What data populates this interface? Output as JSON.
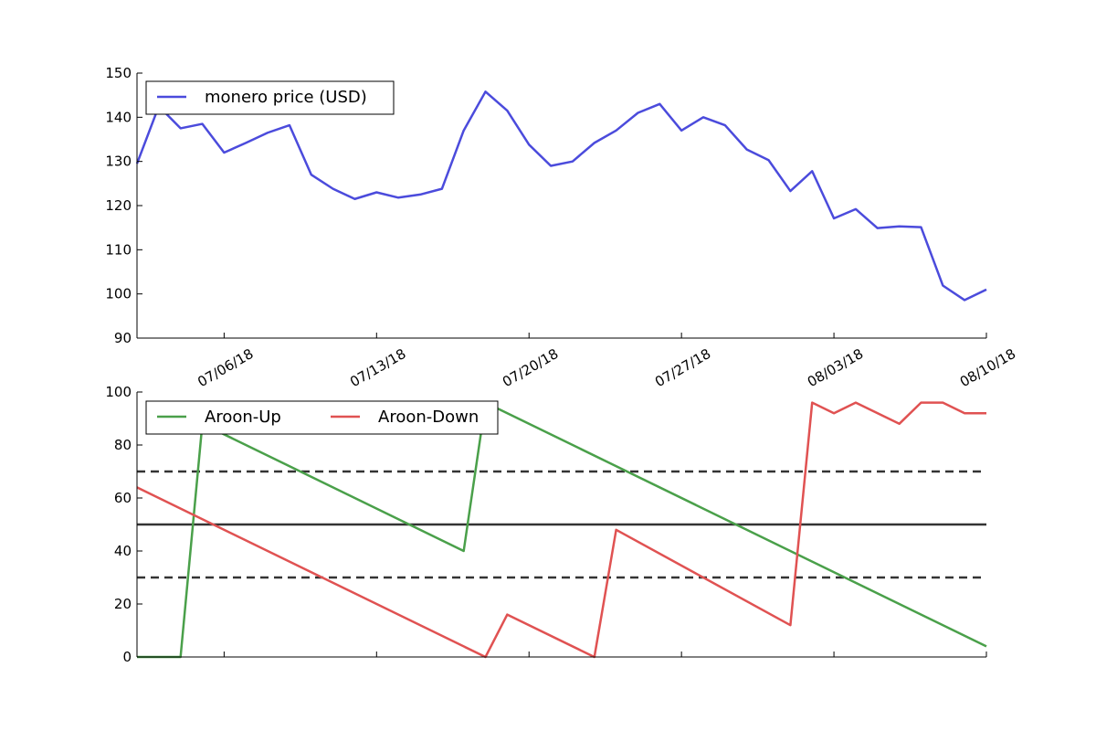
{
  "chart_data": [
    {
      "type": "line",
      "title": "",
      "xlabel": "",
      "ylabel": "",
      "ylim": [
        90,
        150
      ],
      "yticks": [
        90,
        100,
        110,
        120,
        130,
        140,
        150
      ],
      "xlim": [
        "2018-07-02",
        "2018-08-10"
      ],
      "xticks": [
        "07/06/18",
        "07/13/18",
        "07/20/18",
        "07/27/18",
        "08/03/18",
        "08/10/18"
      ],
      "legend_position": "upper-left",
      "grid": false,
      "series": [
        {
          "name": "monero price (USD)",
          "color": "#4b4bdc",
          "x": [
            "2018-07-02",
            "2018-07-03",
            "2018-07-04",
            "2018-07-05",
            "2018-07-06",
            "2018-07-07",
            "2018-07-08",
            "2018-07-09",
            "2018-07-10",
            "2018-07-11",
            "2018-07-12",
            "2018-07-13",
            "2018-07-14",
            "2018-07-15",
            "2018-07-16",
            "2018-07-17",
            "2018-07-18",
            "2018-07-19",
            "2018-07-20",
            "2018-07-21",
            "2018-07-22",
            "2018-07-23",
            "2018-07-24",
            "2018-07-25",
            "2018-07-26",
            "2018-07-27",
            "2018-07-28",
            "2018-07-29",
            "2018-07-30",
            "2018-07-31",
            "2018-08-01",
            "2018-08-02",
            "2018-08-03",
            "2018-08-04",
            "2018-08-05",
            "2018-08-06",
            "2018-08-07",
            "2018-08-08",
            "2018-08-09",
            "2018-08-10"
          ],
          "values": [
            129.5,
            142.5,
            137.5,
            138.5,
            132.0,
            134.2,
            136.5,
            138.2,
            127.0,
            123.8,
            121.5,
            123.0,
            121.8,
            122.5,
            123.8,
            137.0,
            145.8,
            141.5,
            133.8,
            129.0,
            130.0,
            134.2,
            137.0,
            141.0,
            143.0,
            137.0,
            140.0,
            138.2,
            132.7,
            130.3,
            123.3,
            127.8,
            117.1,
            119.2,
            114.9,
            115.3,
            115.1,
            101.9,
            98.6,
            101.0
          ]
        }
      ]
    },
    {
      "type": "line",
      "title": "",
      "xlabel": "",
      "ylabel": "",
      "ylim": [
        0,
        100
      ],
      "yticks": [
        0,
        20,
        40,
        60,
        80,
        100
      ],
      "xlim": [
        "2018-07-02",
        "2018-08-10"
      ],
      "legend_position": "upper-left",
      "grid": false,
      "reference_lines": [
        {
          "y": 70,
          "style": "dashed",
          "color": "#333333"
        },
        {
          "y": 50,
          "style": "solid",
          "color": "#333333"
        },
        {
          "y": 30,
          "style": "dashed",
          "color": "#333333"
        }
      ],
      "series": [
        {
          "name": "Aroon-Up",
          "color": "#4aa04a",
          "x": [
            "2018-07-02",
            "2018-07-03",
            "2018-07-04",
            "2018-07-05",
            "2018-07-17",
            "2018-07-18",
            "2018-08-10"
          ],
          "values": [
            0,
            0,
            0,
            88,
            40,
            96,
            4
          ]
        },
        {
          "name": "Aroon-Down",
          "color": "#e05252",
          "x": [
            "2018-07-02",
            "2018-07-18",
            "2018-07-19",
            "2018-07-23",
            "2018-07-24",
            "2018-08-01",
            "2018-08-02",
            "2018-08-03",
            "2018-08-04",
            "2018-08-06",
            "2018-08-07",
            "2018-08-08",
            "2018-08-09",
            "2018-08-10"
          ],
          "values": [
            64,
            0,
            16,
            0,
            48,
            12,
            96,
            92,
            96,
            88,
            96,
            96,
            92,
            92
          ]
        }
      ]
    }
  ]
}
